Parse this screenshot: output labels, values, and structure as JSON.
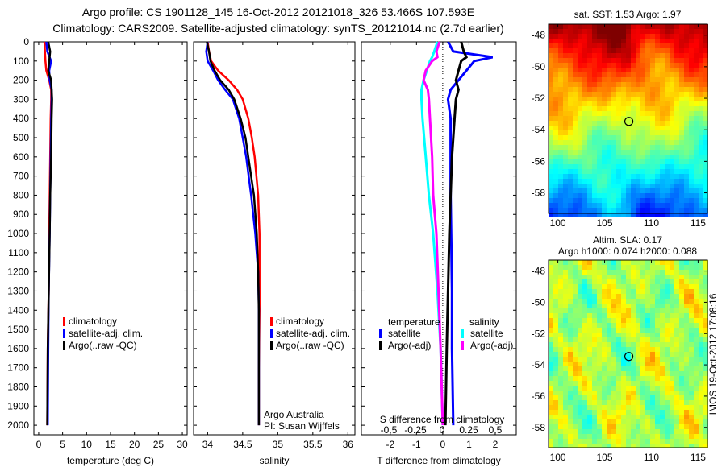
{
  "header": {
    "line1": "Argo profile: CS 1901128_145 16-Oct-2012 20121018_326 53.466S 107.593E",
    "line2": "Climatology: CARS2009. Satellite-adjusted climatology: synTS_20121014.nc (2.7d earlier)"
  },
  "footer_stamp": "IMOS 19-Oct-2012 17:08:16",
  "colors": {
    "climatology": "#ff0000",
    "satellite": "#0000ff",
    "argo": "#000000",
    "sal_satellite": "#00ffff",
    "sal_argo": "#ff00ff"
  },
  "chart_data": [
    {
      "type": "line",
      "xlabel": "temperature (deg C)",
      "ylabel": "",
      "xlim": [
        -1,
        31
      ],
      "ylim": [
        2050,
        0
      ],
      "xticks": [
        "0",
        "5",
        "10",
        "15",
        "20",
        "25",
        "30"
      ],
      "yticks": [
        "0",
        "100",
        "200",
        "300",
        "400",
        "500",
        "600",
        "700",
        "800",
        "900",
        "1000",
        "1100",
        "1200",
        "1300",
        "1400",
        "1500",
        "1600",
        "1700",
        "1800",
        "1900",
        "2000"
      ],
      "depth": [
        0,
        50,
        100,
        150,
        200,
        250,
        300,
        400,
        600,
        800,
        1000,
        1300,
        1600,
        2000
      ],
      "series": [
        {
          "name": "climatology",
          "color": "#ff0000",
          "values": [
            1.2,
            1.3,
            1.4,
            1.6,
            2.2,
            2.6,
            2.6,
            2.5,
            2.4,
            2.3,
            2.2,
            2.1,
            1.9,
            1.8
          ]
        },
        {
          "name": "satellite-adj. clim.",
          "color": "#0000ff",
          "values": [
            1.6,
            1.8,
            2.6,
            2.2,
            2.3,
            2.7,
            2.7,
            2.6,
            2.5,
            2.4,
            2.3,
            2.1,
            2.0,
            1.9
          ]
        },
        {
          "name": "Argo(..raw -QC)",
          "color": "#000000",
          "values": [
            2.0,
            2.4,
            2.2,
            2.0,
            2.6,
            2.7,
            2.8,
            2.7,
            2.6,
            2.4,
            2.3,
            2.1,
            1.9,
            1.8
          ]
        }
      ],
      "legend": [
        "climatology",
        "satellite-adj. clim.",
        "Argo(..raw -QC)"
      ]
    },
    {
      "type": "line",
      "xlabel": "salinity",
      "xlim": [
        33.8,
        36.1
      ],
      "ylim": [
        2050,
        0
      ],
      "xticks": [
        "34",
        "34.5",
        "35",
        "35.5",
        "36"
      ],
      "depth": [
        0,
        50,
        100,
        150,
        200,
        250,
        300,
        400,
        500,
        600,
        800,
        1000,
        1200,
        1400,
        1700,
        2000
      ],
      "series": [
        {
          "name": "climatology",
          "color": "#ff0000",
          "values": [
            34.0,
            34.02,
            34.05,
            34.15,
            34.3,
            34.42,
            34.5,
            34.58,
            34.63,
            34.67,
            34.72,
            34.74,
            34.74,
            34.74,
            34.73,
            34.73
          ]
        },
        {
          "name": "satellite-adj. clim.",
          "color": "#0000ff",
          "values": [
            34.0,
            33.98,
            34.0,
            34.08,
            34.15,
            34.25,
            34.36,
            34.45,
            34.5,
            34.55,
            34.62,
            34.68,
            34.72,
            34.73,
            34.73,
            34.73
          ]
        },
        {
          "name": "Argo(..raw -QC)",
          "color": "#000000",
          "values": [
            33.99,
            34.02,
            34.04,
            34.1,
            34.18,
            34.3,
            34.38,
            34.47,
            34.54,
            34.58,
            34.66,
            34.7,
            34.72,
            34.73,
            34.73,
            34.73
          ]
        }
      ],
      "legend": [
        "climatology",
        "satellite-adj. clim.",
        "Argo(..raw -QC)"
      ],
      "annotation": [
        "Argo Australia",
        "PI: Susan Wijffels"
      ]
    },
    {
      "type": "line",
      "xlabel": "T difference from climatology",
      "xlabel_top": "S difference from climatology",
      "xlim": [
        -3.1,
        2.8
      ],
      "ylim": [
        2050,
        0
      ],
      "xticks": [
        "-2",
        "-1",
        "0",
        "1",
        "2"
      ],
      "xticks_s": [
        "-0.5",
        "-0.25",
        "0",
        "0.25",
        "0.5"
      ],
      "depth": [
        0,
        50,
        80,
        100,
        150,
        200,
        250,
        300,
        400,
        600,
        800,
        1000,
        1300,
        1600,
        2000
      ],
      "series": [
        {
          "name": "temperature satellite",
          "group": "T",
          "color": "#0000ff",
          "values": [
            0.2,
            0.4,
            1.9,
            1.2,
            0.9,
            0.6,
            0.3,
            0.2,
            0.3,
            0.3,
            0.3,
            0.32,
            0.35,
            0.35,
            0.4
          ]
        },
        {
          "name": "temperature Argo(-adj)",
          "group": "T",
          "color": "#000000",
          "values": [
            0.7,
            0.8,
            0.9,
            0.7,
            0.6,
            0.5,
            0.6,
            0.5,
            0.45,
            0.35,
            0.3,
            0.25,
            0.2,
            0.15,
            0.1
          ]
        },
        {
          "name": "salinity satellite",
          "group": "S",
          "color": "#00ffff",
          "values": [
            -0.05,
            -0.08,
            -0.1,
            -0.12,
            -0.15,
            -0.18,
            -0.2,
            -0.2,
            -0.19,
            -0.16,
            -0.13,
            -0.09,
            -0.05,
            -0.02,
            0.0
          ]
        },
        {
          "name": "salinity Argo(-adj)",
          "group": "S",
          "color": "#ff00ff",
          "values": [
            -0.03,
            -0.06,
            -0.05,
            -0.1,
            -0.16,
            -0.18,
            -0.14,
            -0.13,
            -0.12,
            -0.1,
            -0.09,
            -0.06,
            -0.04,
            -0.02,
            0.0
          ]
        }
      ],
      "legend_titles": [
        "temperature",
        "salinity"
      ],
      "legend": [
        "satellite",
        "Argo(-adj)",
        "satellite",
        "Argo(-adj)"
      ]
    },
    {
      "type": "heatmap",
      "title": "sat. SST: 1.53 Argo: 1.97",
      "xticks": [
        "100",
        "105",
        "110",
        "115"
      ],
      "yticks": [
        "-48",
        "-50",
        "-52",
        "-54",
        "-56",
        "-58"
      ],
      "xlim": [
        99,
        116
      ],
      "ylim": [
        -59.3,
        -47.3
      ],
      "marker": {
        "lon": 107.593,
        "lat": -53.466
      }
    },
    {
      "type": "heatmap",
      "title": "Altim. SLA: 0.17",
      "subtitle": "Argo h1000: 0.074 h2000: 0.088",
      "xticks": [
        "100",
        "105",
        "110",
        "115"
      ],
      "yticks": [
        "-48",
        "-50",
        "-52",
        "-54",
        "-56",
        "-58"
      ],
      "xlim": [
        99,
        116
      ],
      "ylim": [
        -59.3,
        -47.3
      ],
      "marker": {
        "lon": 107.593,
        "lat": -53.466
      }
    }
  ]
}
